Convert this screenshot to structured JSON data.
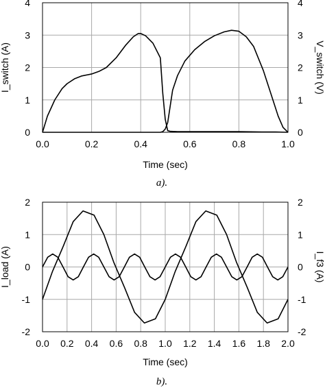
{
  "chart_data": [
    {
      "type": "line",
      "caption": "a).",
      "xlabel": "Time (sec)",
      "ylabel_left": "I_switch (A)",
      "ylabel_right": "V_switch (V)",
      "xlim": [
        0.0,
        1.0
      ],
      "ylim_left": [
        0,
        4
      ],
      "ylim_right": [
        0,
        4
      ],
      "xticks": [
        "0.0",
        "0.2",
        "0.4",
        "0.6",
        "0.8",
        "1.0"
      ],
      "yticks_left": [
        "0",
        "1",
        "2",
        "3",
        "4"
      ],
      "yticks_right": [
        "0",
        "1",
        "2",
        "3",
        "4"
      ],
      "grid": true,
      "series": [
        {
          "axis": "left",
          "x": [
            0.0,
            0.02,
            0.05,
            0.08,
            0.1,
            0.13,
            0.16,
            0.2,
            0.23,
            0.26,
            0.3,
            0.34,
            0.37,
            0.39,
            0.4,
            0.42,
            0.45,
            0.47,
            0.48,
            0.49,
            0.5,
            0.51,
            0.52,
            0.55,
            0.6,
            0.7,
            0.8,
            0.9,
            0.95,
            1.0
          ],
          "y": [
            0.0,
            0.5,
            1.0,
            1.35,
            1.5,
            1.65,
            1.74,
            1.8,
            1.88,
            2.0,
            2.3,
            2.7,
            2.95,
            3.05,
            3.05,
            2.98,
            2.75,
            2.45,
            2.3,
            1.2,
            0.4,
            0.05,
            0.03,
            0.02,
            0.02,
            0.02,
            0.02,
            0.01,
            0.01,
            0.0
          ]
        },
        {
          "axis": "right",
          "x": [
            0.0,
            0.3,
            0.48,
            0.49,
            0.5,
            0.51,
            0.52,
            0.53,
            0.55,
            0.58,
            0.62,
            0.66,
            0.7,
            0.74,
            0.77,
            0.8,
            0.83,
            0.86,
            0.9,
            0.93,
            0.96,
            0.98,
            1.0
          ],
          "y": [
            0.0,
            0.0,
            0.0,
            0.02,
            0.1,
            0.3,
            0.8,
            1.3,
            1.75,
            2.2,
            2.55,
            2.8,
            2.98,
            3.1,
            3.15,
            3.12,
            2.95,
            2.65,
            1.9,
            1.2,
            0.5,
            0.15,
            0.0
          ]
        }
      ]
    },
    {
      "type": "line",
      "caption": "b).",
      "xlabel": "Time (sec)",
      "ylabel_left": "I_load (A)",
      "ylabel_right": "I_f3 (A)",
      "xlim": [
        0.0,
        2.0
      ],
      "ylim_left": [
        -2,
        2
      ],
      "ylim_right": [
        -2,
        2
      ],
      "xticks": [
        "0.0",
        "0.2",
        "0.4",
        "0.6",
        "0.8",
        "1.0",
        "1.2",
        "1.4",
        "1.6",
        "1.8",
        "2.0"
      ],
      "yticks_left": [
        "2",
        "1",
        "0",
        "-1",
        "-2"
      ],
      "yticks_right": [
        "2",
        "1",
        "0",
        "-1",
        "-2"
      ],
      "grid": true,
      "series": [
        {
          "axis": "left",
          "x": [
            0.0,
            0.08,
            0.17,
            0.25,
            0.33,
            0.42,
            0.5,
            0.58,
            0.67,
            0.75,
            0.83,
            0.92,
            1.0,
            1.08,
            1.17,
            1.25,
            1.33,
            1.42,
            1.5,
            1.58,
            1.67,
            1.75,
            1.83,
            1.92,
            2.0
          ],
          "y": [
            -1.0,
            -0.15,
            0.65,
            1.4,
            1.73,
            1.6,
            1.0,
            0.15,
            -0.65,
            -1.4,
            -1.73,
            -1.6,
            -1.0,
            -0.15,
            0.65,
            1.4,
            1.73,
            1.6,
            1.0,
            0.15,
            -0.65,
            -1.4,
            -1.73,
            -1.6,
            -1.0
          ]
        },
        {
          "axis": "right",
          "x": [
            0.0,
            0.042,
            0.083,
            0.125,
            0.167,
            0.208,
            0.25,
            0.292,
            0.333,
            0.375,
            0.417,
            0.458,
            0.5,
            0.542,
            0.583,
            0.625,
            0.667,
            0.708,
            0.75,
            0.792,
            0.833,
            0.875,
            0.917,
            0.958,
            1.0,
            1.042,
            1.083,
            1.125,
            1.167,
            1.208,
            1.25,
            1.292,
            1.333,
            1.375,
            1.417,
            1.458,
            1.5,
            1.542,
            1.583,
            1.625,
            1.667,
            1.708,
            1.75,
            1.792,
            1.833,
            1.875,
            1.917,
            1.958,
            2.0
          ],
          "y": [
            0.0,
            0.3,
            0.4,
            0.3,
            0.0,
            -0.3,
            -0.4,
            -0.3,
            0.0,
            0.3,
            0.4,
            0.3,
            0.0,
            -0.3,
            -0.4,
            -0.3,
            0.0,
            0.3,
            0.4,
            0.3,
            0.0,
            -0.3,
            -0.4,
            -0.3,
            0.0,
            0.3,
            0.4,
            0.3,
            0.0,
            -0.3,
            -0.4,
            -0.3,
            0.0,
            0.3,
            0.4,
            0.3,
            0.0,
            -0.3,
            -0.4,
            -0.3,
            0.0,
            0.3,
            0.4,
            0.3,
            0.0,
            -0.3,
            -0.4,
            -0.3,
            0.0
          ]
        }
      ]
    }
  ]
}
